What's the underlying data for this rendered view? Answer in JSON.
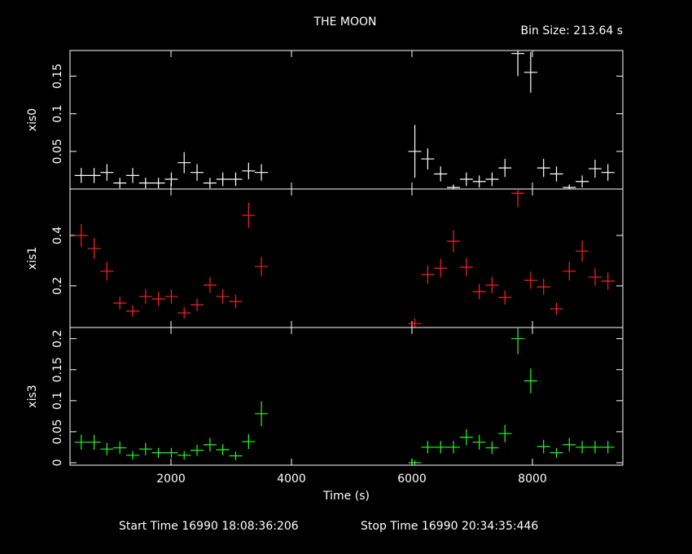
{
  "title": "THE MOON",
  "subtitle": "Bin Size: 213.64 s",
  "footer": {
    "start": "Start Time 16990 18:08:36:206",
    "stop": "Stop Time 16990 20:34:35:446"
  },
  "chart_data": [
    {
      "type": "scatter",
      "error_bars": true,
      "x": [
        510,
        724,
        937,
        1151,
        1365,
        1578,
        1792,
        2006,
        2219,
        2433,
        2647,
        2860,
        3074,
        3288,
        3501,
        6048,
        6262,
        6476,
        6689,
        6903,
        7117,
        7330,
        7544,
        7758,
        7971,
        8185,
        8399,
        8612,
        8826,
        9040,
        9253
      ],
      "xlim": [
        324,
        9500
      ],
      "xticks": [
        2000,
        4000,
        6000,
        8000
      ],
      "ylim": [
        0,
        0.184
      ],
      "yticks": [
        0.05,
        0.1,
        0.15
      ],
      "series": [
        {
          "name": "xis0",
          "color": "#ffffff",
          "values": [
            0.018,
            0.018,
            0.022,
            0.008,
            0.018,
            0.008,
            0.008,
            0.013,
            0.035,
            0.022,
            0.008,
            0.013,
            0.013,
            0.024,
            0.022,
            0.05,
            0.04,
            0.02,
            0.002,
            0.013,
            0.01,
            0.013,
            0.028,
            0.18,
            0.155,
            0.028,
            0.02,
            0.002,
            0.01,
            0.027,
            0.022
          ],
          "errors": [
            0.01,
            0.01,
            0.011,
            0.007,
            0.01,
            0.007,
            0.007,
            0.009,
            0.014,
            0.011,
            0.007,
            0.009,
            0.009,
            0.011,
            0.011,
            0.035,
            0.014,
            0.01,
            0.004,
            0.009,
            0.008,
            0.009,
            0.012,
            0.03,
            0.027,
            0.012,
            0.01,
            0.004,
            0.008,
            0.012,
            0.011
          ]
        }
      ]
    },
    {
      "type": "scatter",
      "error_bars": true,
      "x": [
        510,
        724,
        937,
        1151,
        1365,
        1578,
        1792,
        2006,
        2219,
        2433,
        2647,
        2860,
        3074,
        3288,
        3501,
        6048,
        6262,
        6476,
        6689,
        6903,
        7117,
        7330,
        7544,
        7758,
        7971,
        8185,
        8399,
        8612,
        8826,
        9040,
        9253
      ],
      "xlim": [
        324,
        9500
      ],
      "xticks": [
        2000,
        4000,
        6000,
        8000
      ],
      "ylim": [
        0.035,
        0.584
      ],
      "yticks": [
        0.2,
        0.4
      ],
      "series": [
        {
          "name": "xis1",
          "color": "#ff2020",
          "values": [
            0.4,
            0.348,
            0.258,
            0.132,
            0.1,
            0.158,
            0.148,
            0.158,
            0.093,
            0.125,
            0.203,
            0.158,
            0.138,
            0.48,
            0.277,
            0.051,
            0.245,
            0.27,
            0.377,
            0.274,
            0.177,
            0.203,
            0.154,
            0.567,
            0.222,
            0.196,
            0.109,
            0.258,
            0.338,
            0.235,
            0.219
          ],
          "errors": [
            0.045,
            0.042,
            0.037,
            0.026,
            0.023,
            0.029,
            0.028,
            0.029,
            0.022,
            0.025,
            0.032,
            0.029,
            0.027,
            0.05,
            0.038,
            0.02,
            0.036,
            0.037,
            0.044,
            0.037,
            0.03,
            0.032,
            0.028,
            0.055,
            0.034,
            0.032,
            0.024,
            0.037,
            0.042,
            0.035,
            0.034
          ]
        }
      ]
    },
    {
      "type": "scatter",
      "error_bars": true,
      "x": [
        510,
        724,
        937,
        1151,
        1365,
        1578,
        1792,
        2006,
        2219,
        2433,
        2647,
        2860,
        3074,
        3288,
        3501,
        6048,
        6262,
        6476,
        6689,
        6903,
        7117,
        7330,
        7544,
        7758,
        7971,
        8185,
        8399,
        8612,
        8826,
        9040,
        9253
      ],
      "xlim": [
        324,
        9500
      ],
      "xticks": [
        2000,
        4000,
        6000,
        8000
      ],
      "xlabel": "Time (s)",
      "ylim": [
        -0.004,
        0.218
      ],
      "yticks": [
        0,
        0.05,
        0.1,
        0.15,
        0.2
      ],
      "series": [
        {
          "name": "xis3",
          "color": "#20ff20",
          "values": [
            0.033,
            0.033,
            0.022,
            0.024,
            0.012,
            0.022,
            0.016,
            0.016,
            0.012,
            0.02,
            0.029,
            0.021,
            0.011,
            0.034,
            0.079,
            0,
            0.025,
            0.025,
            0.025,
            0.041,
            0.033,
            0.024,
            0.047,
            0.2,
            0.132,
            0.026,
            0.016,
            0.029,
            0.025,
            0.025,
            0.025
          ],
          "errors": [
            0.012,
            0.012,
            0.01,
            0.01,
            0.007,
            0.01,
            0.008,
            0.008,
            0.007,
            0.009,
            0.011,
            0.009,
            0.007,
            0.012,
            0.02,
            0.004,
            0.01,
            0.01,
            0.01,
            0.013,
            0.012,
            0.01,
            0.014,
            0.025,
            0.02,
            0.011,
            0.008,
            0.011,
            0.01,
            0.01,
            0.01
          ]
        }
      ]
    }
  ]
}
